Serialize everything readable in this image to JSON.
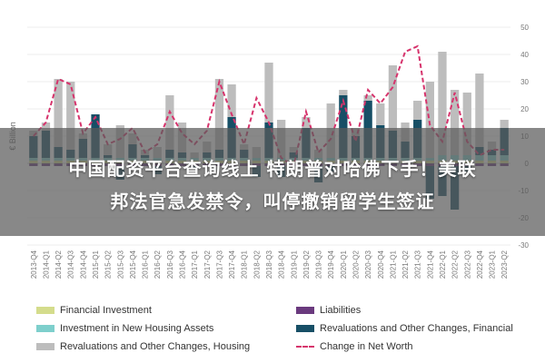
{
  "headline": {
    "line1": "中国配资平台查询线上 特朗普对哈佛下手！美联",
    "line2": "邦法官急发禁令，叫停撤销留学生签证"
  },
  "chart_data": {
    "type": "bar",
    "ylabel": "€ Billion",
    "ylim": [
      -30,
      50
    ],
    "yticks": [
      -30,
      -20,
      -10,
      0,
      10,
      20,
      30,
      40,
      50
    ],
    "categories": [
      "2013-Q4",
      "2014-Q1",
      "2014-Q2",
      "2014-Q3",
      "2014-Q4",
      "2015-Q1",
      "2015-Q2",
      "2015-Q3",
      "2015-Q4",
      "2016-Q1",
      "2016-Q2",
      "2016-Q3",
      "2016-Q4",
      "2017-Q1",
      "2017-Q2",
      "2017-Q3",
      "2017-Q4",
      "2018-Q1",
      "2018-Q2",
      "2018-Q3",
      "2018-Q4",
      "2019-Q1",
      "2019-Q2",
      "2019-Q3",
      "2019-Q4",
      "2020-Q1",
      "2020-Q2",
      "2020-Q3",
      "2020-Q4",
      "2021-Q1",
      "2021-Q2",
      "2021-Q3",
      "2021-Q4",
      "2022-Q1",
      "2022-Q2",
      "2022-Q3",
      "2022-Q4",
      "2023-Q1",
      "2023-Q2"
    ],
    "series": [
      {
        "name": "Financial Investment",
        "color": "#d4dc8c",
        "values": [
          1,
          1,
          1,
          1,
          1,
          1,
          1,
          1,
          1,
          1,
          1,
          1,
          1,
          1,
          1,
          1,
          1,
          1,
          1,
          1,
          1,
          1,
          1,
          1,
          1,
          1,
          1,
          1,
          1,
          1,
          1,
          1,
          1,
          1,
          1,
          1,
          1,
          1,
          1
        ]
      },
      {
        "name": "Investment in New Housing Assets",
        "color": "#7ecfcc",
        "values": [
          1,
          1,
          1,
          1,
          1,
          1,
          1,
          1,
          1,
          1,
          1,
          1,
          1,
          1,
          1,
          1,
          1,
          1,
          1,
          1,
          1,
          1,
          1,
          1,
          1,
          1,
          1,
          1,
          1,
          1,
          1,
          1,
          1,
          2,
          2,
          2,
          2,
          2,
          2
        ]
      },
      {
        "name": "Liabilities",
        "color": "#6a3a7e",
        "values": [
          -1,
          -1,
          -1,
          -1,
          -1,
          -1,
          -1,
          -1,
          -1,
          -1,
          -1,
          -1,
          -1,
          -1,
          -1,
          -1,
          -1,
          -1,
          -1,
          -1,
          -1,
          -1,
          -1,
          -1,
          -1,
          -1,
          -1,
          -1,
          -1,
          -1,
          -1,
          -1,
          -1,
          -1,
          -1,
          -1,
          -1,
          -1,
          -1
        ]
      },
      {
        "name": "Revaluations and Other Changes, Financial",
        "color": "#174f66",
        "values": [
          8,
          10,
          4,
          3,
          7,
          16,
          1,
          -5,
          5,
          1,
          -3,
          3,
          2,
          -1,
          2,
          3,
          15,
          3,
          -4,
          13,
          -4,
          2,
          11,
          -6,
          -2,
          23,
          8,
          21,
          12,
          10,
          6,
          14,
          -12,
          -11,
          -16,
          -2,
          3,
          2,
          10
        ]
      },
      {
        "name": "Revaluations and Other Changes, Housing",
        "color": "#bdbdbd",
        "values": [
          2,
          3,
          25,
          25,
          2,
          0,
          4,
          12,
          4,
          2,
          4,
          20,
          11,
          2,
          4,
          26,
          12,
          2,
          4,
          22,
          14,
          2,
          4,
          3,
          20,
          2,
          3,
          2,
          8,
          24,
          7,
          7,
          28,
          38,
          24,
          23,
          27,
          3,
          3
        ]
      },
      {
        "name": "Change in Net Worth",
        "color": "#d6336c",
        "line": true,
        "values": [
          10,
          15,
          31,
          29,
          11,
          17,
          7,
          9,
          13,
          4,
          7,
          19,
          11,
          7,
          12,
          30,
          18,
          7,
          24,
          15,
          2,
          -1,
          19,
          4,
          9,
          23,
          8,
          27,
          22,
          28,
          41,
          43,
          14,
          8,
          26,
          8,
          3,
          5,
          5
        ]
      }
    ]
  },
  "legend": [
    "Financial Investment",
    "Liabilities",
    "Investment in New Housing Assets",
    "Revaluations and Other Changes, Financial",
    "Revaluations and Other Changes, Housing",
    "Change in Net Worth"
  ]
}
